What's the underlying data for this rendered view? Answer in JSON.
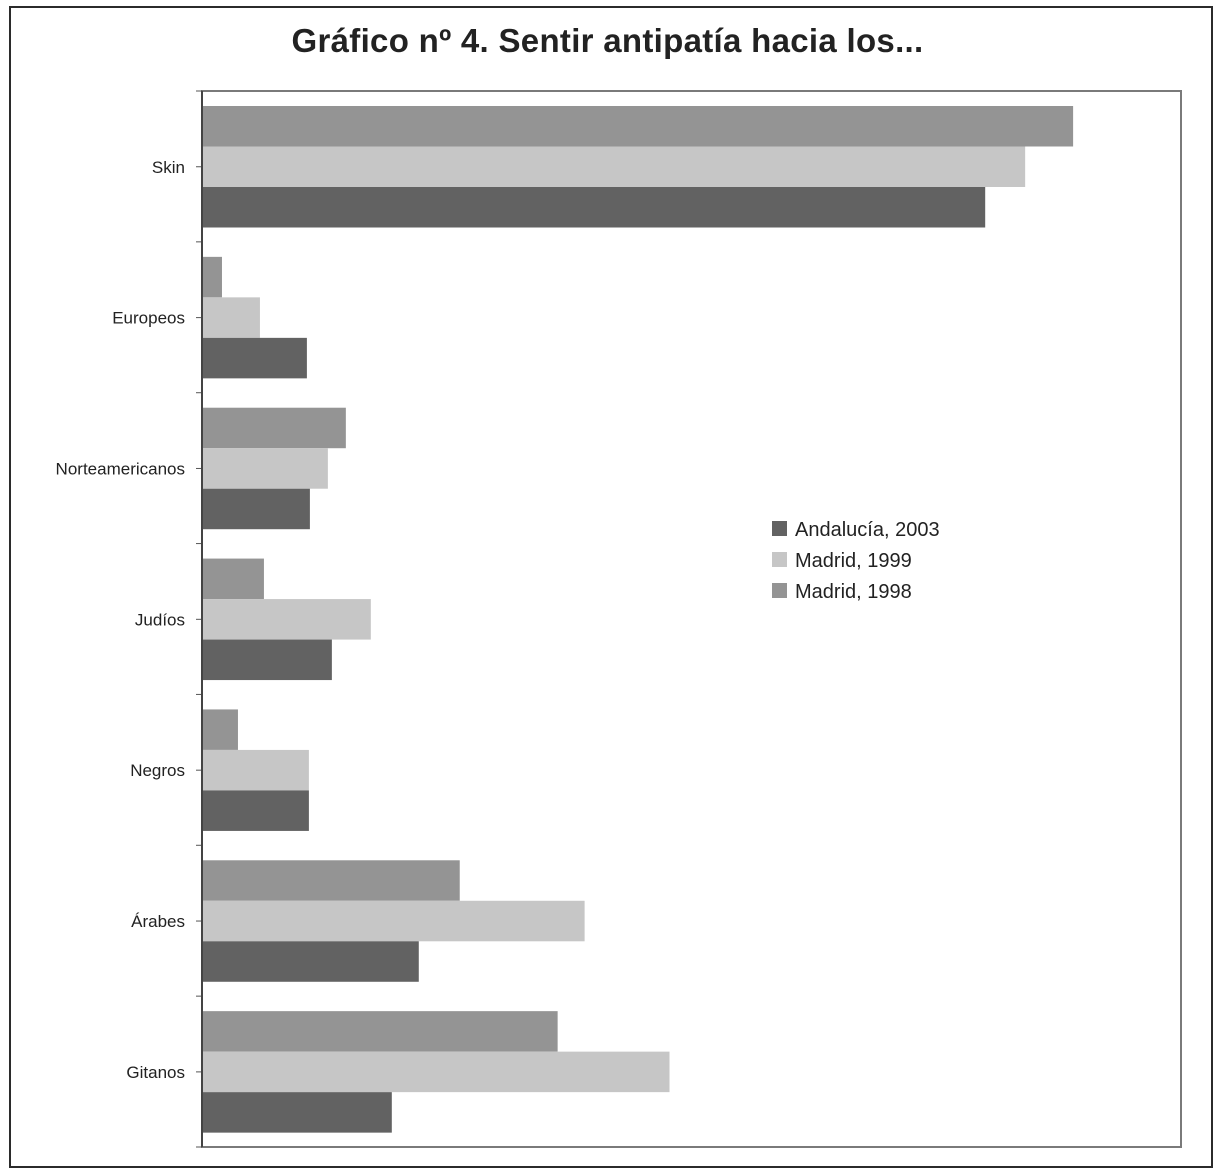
{
  "chart_data": {
    "type": "bar",
    "orientation": "horizontal",
    "title": "Gráfico nº 4. Sentir antipatía hacia los...",
    "categories": [
      "Skin",
      "Europeos",
      "Norteamericanos",
      "Judíos",
      "Negros",
      "Árabes",
      "Gitanos"
    ],
    "series": [
      {
        "name": "Madrid, 1998",
        "color": "#949494",
        "values": [
          87.2,
          2.0,
          14.4,
          6.2,
          3.6,
          25.8,
          35.6
        ]
      },
      {
        "name": "Madrid, 1999",
        "color": "#c6c6c6",
        "values": [
          82.4,
          5.8,
          12.6,
          16.9,
          10.7,
          38.3,
          46.8
        ]
      },
      {
        "name": "Andalucía, 2003",
        "color": "#626262",
        "values": [
          78.4,
          10.5,
          10.8,
          13.0,
          10.7,
          21.7,
          19.0
        ]
      }
    ],
    "legend_order": [
      "Andalucía, 2003",
      "Madrid, 1999",
      "Madrid, 1998"
    ],
    "legend_position": "right",
    "xlim": [
      0,
      98
    ],
    "grid": false,
    "xlabel": "",
    "ylabel": ""
  }
}
